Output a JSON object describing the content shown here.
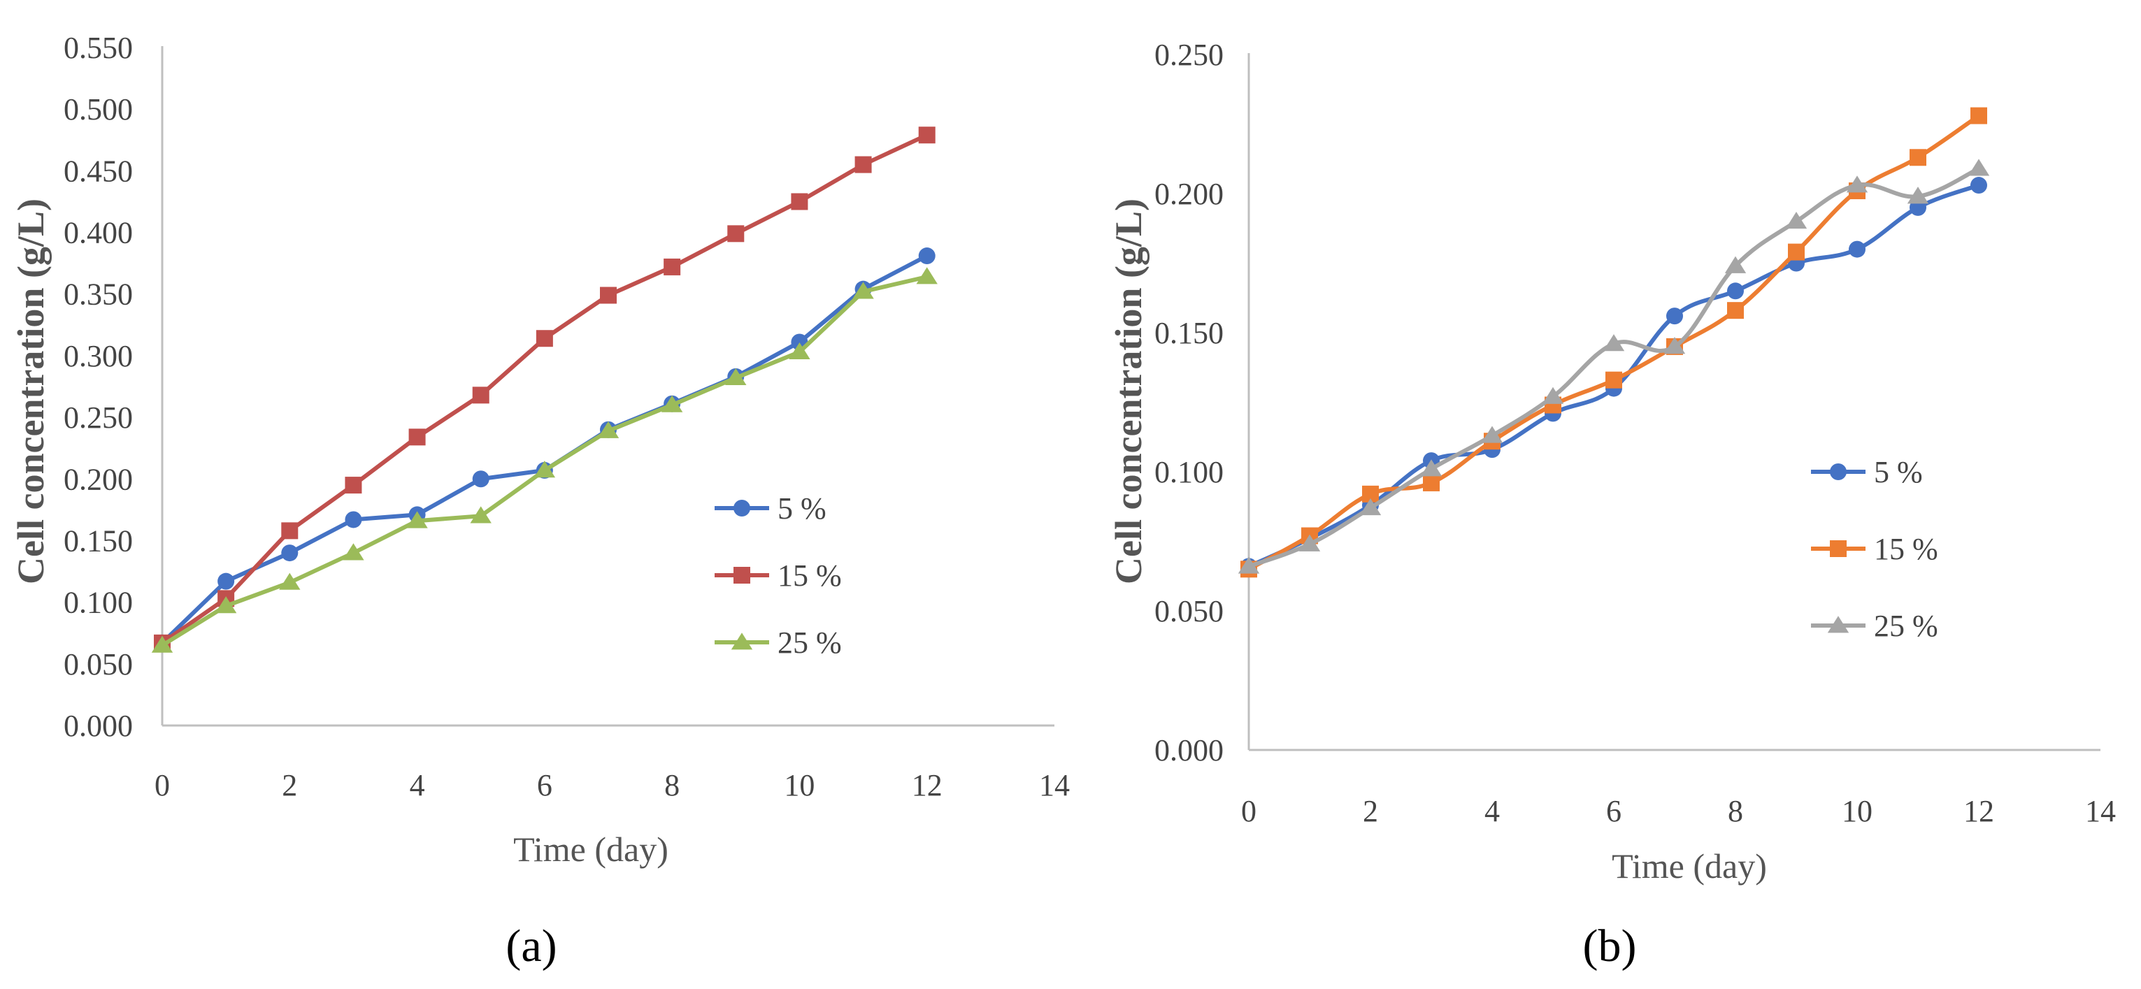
{
  "chart_data": [
    {
      "type": "line",
      "panel_label": "(a)",
      "xlabel": "Time (day)",
      "ylabel": "Cell concentration (g/L)",
      "xlim": [
        0,
        14
      ],
      "ylim": [
        0,
        0.55
      ],
      "x_ticks": [
        0,
        2,
        4,
        6,
        8,
        10,
        12,
        14
      ],
      "y_ticks": [
        0,
        0.05,
        0.1,
        0.15,
        0.2,
        0.25,
        0.3,
        0.35,
        0.4,
        0.45,
        0.5,
        0.55
      ],
      "x_tick_labels": [
        "0",
        "2",
        "4",
        "6",
        "8",
        "10",
        "12",
        "14"
      ],
      "y_tick_labels": [
        "0.000",
        "0.050",
        "0.100",
        "0.150",
        "0.200",
        "0.250",
        "0.300",
        "0.350",
        "0.400",
        "0.450",
        "0.500",
        "0.550"
      ],
      "grid": false,
      "legend_position": "right",
      "smooth": false,
      "x": [
        0,
        1,
        2,
        3,
        4,
        5,
        6,
        7,
        8,
        9,
        10,
        11,
        12
      ],
      "series": [
        {
          "name": "5 %",
          "color": "#4472C4",
          "marker": "circle",
          "values": [
            0.067,
            0.117,
            0.14,
            0.167,
            0.171,
            0.2,
            0.207,
            0.24,
            0.261,
            0.283,
            0.311,
            0.354,
            0.381
          ]
        },
        {
          "name": "15 %",
          "color": "#C0504D",
          "marker": "square",
          "values": [
            0.067,
            0.103,
            0.158,
            0.195,
            0.234,
            0.268,
            0.314,
            0.349,
            0.372,
            0.399,
            0.425,
            0.455,
            0.479
          ]
        },
        {
          "name": "25 %",
          "color": "#9BBB59",
          "marker": "triangle",
          "values": [
            0.065,
            0.097,
            0.116,
            0.14,
            0.166,
            0.17,
            0.207,
            0.239,
            0.26,
            0.282,
            0.303,
            0.352,
            0.364
          ]
        }
      ]
    },
    {
      "type": "line",
      "panel_label": "(b)",
      "xlabel": "Time (day)",
      "ylabel": "Cell concentration (g/L)",
      "xlim": [
        0,
        14
      ],
      "ylim": [
        0,
        0.25
      ],
      "x_ticks": [
        0,
        2,
        4,
        6,
        8,
        10,
        12,
        14
      ],
      "y_ticks": [
        0,
        0.05,
        0.1,
        0.15,
        0.2,
        0.25
      ],
      "x_tick_labels": [
        "0",
        "2",
        "4",
        "6",
        "8",
        "10",
        "12",
        "14"
      ],
      "y_tick_labels": [
        "0.000",
        "0.050",
        "0.100",
        "0.150",
        "0.200",
        "0.250"
      ],
      "grid": false,
      "legend_position": "right",
      "smooth": true,
      "x": [
        0,
        1,
        2,
        3,
        4,
        5,
        6,
        7,
        8,
        9,
        10,
        11,
        12
      ],
      "series": [
        {
          "name": "5 %",
          "color": "#4472C4",
          "marker": "circle",
          "values": [
            0.066,
            0.076,
            0.088,
            0.104,
            0.108,
            0.121,
            0.13,
            0.156,
            0.165,
            0.175,
            0.18,
            0.195,
            0.203
          ]
        },
        {
          "name": "15 %",
          "color": "#ED7D31",
          "marker": "square",
          "values": [
            0.065,
            0.077,
            0.092,
            0.096,
            0.111,
            0.124,
            0.133,
            0.145,
            0.158,
            0.179,
            0.201,
            0.213,
            0.228
          ]
        },
        {
          "name": "25 %",
          "color": "#A5A5A5",
          "marker": "triangle",
          "values": [
            0.066,
            0.074,
            0.087,
            0.101,
            0.113,
            0.127,
            0.146,
            0.145,
            0.174,
            0.19,
            0.203,
            0.199,
            0.209
          ]
        }
      ]
    }
  ]
}
